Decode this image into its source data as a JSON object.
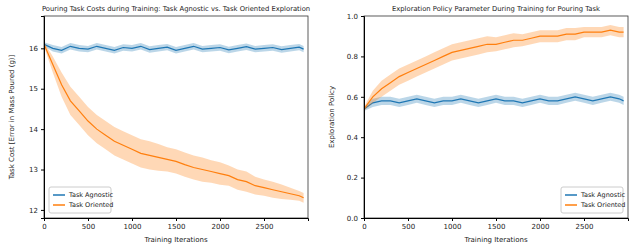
{
  "chart_data": [
    {
      "type": "line",
      "title": "Pouring Task Costs during Training: Task Agnostic vs. Task Oriented Exploration",
      "x_label": "Training Iterations",
      "y_label": "Task Cost [Error in Mass Poured (g)]",
      "x": [
        0,
        100,
        200,
        300,
        400,
        500,
        600,
        700,
        800,
        900,
        1000,
        1100,
        1200,
        1300,
        1400,
        1500,
        1600,
        1700,
        1800,
        1900,
        2000,
        2100,
        2200,
        2300,
        2400,
        2500,
        2600,
        2700,
        2800,
        2900,
        2950
      ],
      "xlim": [
        0,
        3000
      ],
      "xticks": [
        0,
        500,
        1000,
        1500,
        2000,
        2500
      ],
      "ylim": [
        11.8,
        16.8
      ],
      "yticks": [
        12,
        13,
        14,
        15,
        16
      ],
      "legend": "lower left",
      "series": [
        {
          "name": "Task Agnostic",
          "color": "#1f77b4",
          "values": [
            16.1,
            16.0,
            15.95,
            16.05,
            16.0,
            15.98,
            16.05,
            16.0,
            15.95,
            16.02,
            16.0,
            16.05,
            15.97,
            16.0,
            16.03,
            15.95,
            16.0,
            16.05,
            15.98,
            16.0,
            16.02,
            15.96,
            16.0,
            16.04,
            15.98,
            16.0,
            16.02,
            15.97,
            16.0,
            16.03,
            15.98
          ],
          "std": [
            0.05,
            0.08,
            0.08,
            0.08,
            0.08,
            0.08,
            0.08,
            0.08,
            0.08,
            0.08,
            0.08,
            0.08,
            0.08,
            0.08,
            0.08,
            0.08,
            0.08,
            0.08,
            0.08,
            0.08,
            0.08,
            0.08,
            0.08,
            0.08,
            0.08,
            0.08,
            0.08,
            0.08,
            0.08,
            0.08,
            0.08
          ]
        },
        {
          "name": "Task Oriented",
          "color": "#ff7f0e",
          "values": [
            16.1,
            15.6,
            15.1,
            14.7,
            14.45,
            14.2,
            14.0,
            13.85,
            13.7,
            13.6,
            13.5,
            13.4,
            13.35,
            13.3,
            13.25,
            13.2,
            13.12,
            13.05,
            13.0,
            12.95,
            12.9,
            12.85,
            12.75,
            12.7,
            12.6,
            12.55,
            12.5,
            12.45,
            12.4,
            12.35,
            12.3
          ],
          "std": [
            0.05,
            0.2,
            0.3,
            0.35,
            0.35,
            0.35,
            0.35,
            0.35,
            0.35,
            0.35,
            0.35,
            0.35,
            0.35,
            0.33,
            0.3,
            0.3,
            0.3,
            0.3,
            0.3,
            0.28,
            0.28,
            0.25,
            0.25,
            0.25,
            0.22,
            0.2,
            0.2,
            0.18,
            0.15,
            0.12,
            0.12
          ]
        }
      ]
    },
    {
      "type": "line",
      "title": "Exploration Policy Parameter During Training for Pouring Task",
      "x_label": "Training Iterations",
      "y_label": "Exploration Policy",
      "x": [
        0,
        100,
        200,
        300,
        400,
        500,
        600,
        700,
        800,
        900,
        1000,
        1100,
        1200,
        1300,
        1400,
        1500,
        1600,
        1700,
        1800,
        1900,
        2000,
        2100,
        2200,
        2300,
        2400,
        2500,
        2600,
        2700,
        2800,
        2900,
        2950
      ],
      "xlim": [
        0,
        3000
      ],
      "xticks": [
        0,
        500,
        1000,
        1500,
        2000,
        2500
      ],
      "ylim": [
        0,
        1
      ],
      "yticks": [
        {
          "value": 0,
          "label": "0.0"
        },
        0.2,
        0.4,
        0.6,
        0.8,
        {
          "value": 1,
          "label": "1.0"
        }
      ],
      "legend": "lower right",
      "series": [
        {
          "name": "Task Agnostic",
          "color": "#1f77b4",
          "values": [
            0.54,
            0.57,
            0.58,
            0.58,
            0.57,
            0.58,
            0.59,
            0.58,
            0.57,
            0.58,
            0.58,
            0.59,
            0.58,
            0.57,
            0.58,
            0.59,
            0.58,
            0.58,
            0.57,
            0.58,
            0.59,
            0.58,
            0.58,
            0.59,
            0.6,
            0.59,
            0.58,
            0.59,
            0.6,
            0.59,
            0.58
          ],
          "std": [
            0.01,
            0.02,
            0.02,
            0.02,
            0.02,
            0.02,
            0.02,
            0.02,
            0.02,
            0.02,
            0.02,
            0.02,
            0.02,
            0.02,
            0.02,
            0.02,
            0.02,
            0.02,
            0.02,
            0.02,
            0.02,
            0.02,
            0.02,
            0.02,
            0.02,
            0.02,
            0.02,
            0.02,
            0.02,
            0.02,
            0.02
          ]
        },
        {
          "name": "Task Oriented",
          "color": "#ff7f0e",
          "values": [
            0.54,
            0.6,
            0.64,
            0.67,
            0.7,
            0.72,
            0.74,
            0.76,
            0.78,
            0.8,
            0.82,
            0.83,
            0.84,
            0.85,
            0.86,
            0.86,
            0.87,
            0.88,
            0.88,
            0.89,
            0.9,
            0.9,
            0.9,
            0.91,
            0.91,
            0.92,
            0.92,
            0.92,
            0.93,
            0.92,
            0.92
          ],
          "std": [
            0.01,
            0.03,
            0.04,
            0.04,
            0.04,
            0.04,
            0.04,
            0.04,
            0.04,
            0.04,
            0.04,
            0.04,
            0.04,
            0.04,
            0.04,
            0.035,
            0.035,
            0.035,
            0.03,
            0.03,
            0.03,
            0.03,
            0.03,
            0.03,
            0.03,
            0.025,
            0.025,
            0.025,
            0.025,
            0.025,
            0.025
          ]
        }
      ]
    }
  ]
}
